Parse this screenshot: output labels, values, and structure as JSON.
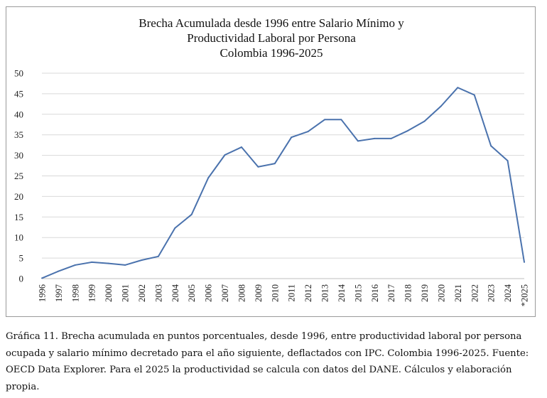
{
  "chart_data": {
    "type": "line",
    "title_lines": [
      "Brecha Acumulada desde 1996 entre Salario Mínimo y",
      "Productividad Laboral por Persona",
      "Colombia 1996-2025"
    ],
    "xlabel": "",
    "ylabel": "",
    "ylim": [
      0,
      50
    ],
    "yticks": [
      0,
      5,
      10,
      15,
      20,
      25,
      30,
      35,
      40,
      45,
      50
    ],
    "grid": true,
    "legend": "none",
    "line_color": "#4a72ad",
    "categories": [
      "1996",
      "1997",
      "1998",
      "1999",
      "2000",
      "2001",
      "2002",
      "2003",
      "2004",
      "2005",
      "2006",
      "2007",
      "2008",
      "2009",
      "2010",
      "2011",
      "2012",
      "2013",
      "2014",
      "2015",
      "2016",
      "2017",
      "2018",
      "2019",
      "2020",
      "2021",
      "2022",
      "2023",
      "2024",
      "*2025"
    ],
    "values": [
      0.1,
      1.8,
      3.3,
      4.0,
      3.7,
      3.3,
      4.5,
      5.4,
      12.3,
      15.6,
      24.5,
      30.1,
      32.0,
      27.2,
      28.0,
      34.4,
      35.8,
      38.7,
      38.7,
      33.5,
      34.1,
      34.1,
      36.0,
      38.3,
      42.0,
      46.5,
      44.7,
      32.3,
      28.7,
      4.0
    ]
  },
  "caption": "Gráfica 11. Brecha acumulada en puntos porcentuales, desde 1996, entre productividad laboral por persona ocupada y salario mínimo decretado para el año siguiente, deflactados con IPC. Colombia 1996-2025. Fuente: OECD Data Explorer. Para el 2025 la productividad se calcula con datos del DANE. Cálculos y elaboración propia."
}
